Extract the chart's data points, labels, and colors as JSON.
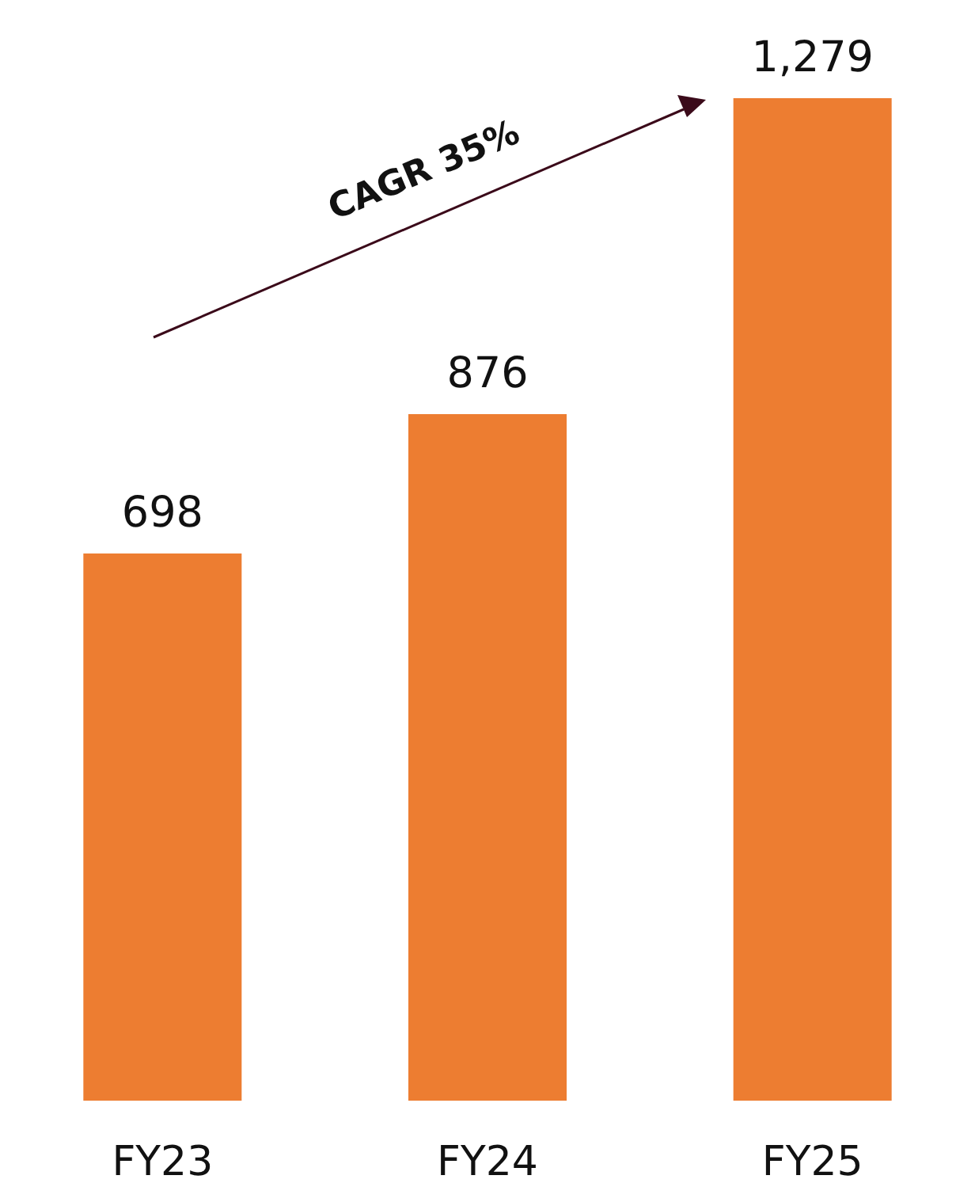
{
  "chart_data": {
    "type": "bar",
    "categories": [
      "FY23",
      "FY24",
      "FY25"
    ],
    "values": [
      698,
      876,
      1279
    ],
    "value_labels": [
      "698",
      "876",
      "1,279"
    ],
    "color": "#ed7d31",
    "annotations": [
      "CAGR 35%"
    ]
  }
}
